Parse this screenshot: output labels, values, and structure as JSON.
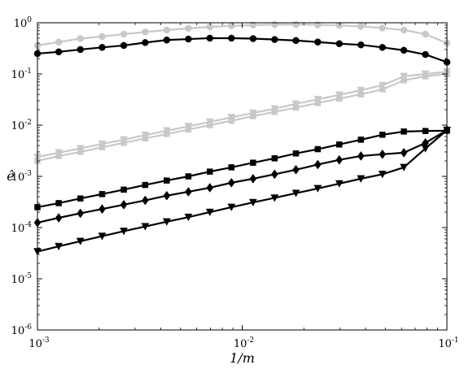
{
  "chart_data": {
    "type": "line",
    "title": "",
    "xlabel": "1/m",
    "ylabel": "ê",
    "xscale": "log",
    "yscale": "log",
    "xlim": [
      0.001,
      0.1
    ],
    "ylim": [
      1e-06,
      1
    ],
    "grid": false,
    "legend": "none",
    "x_ticks": [
      {
        "value": 0.001,
        "base": "10",
        "exp": "-3"
      },
      {
        "value": 0.01,
        "base": "10",
        "exp": "-2"
      },
      {
        "value": 0.1,
        "base": "10",
        "exp": "-1"
      }
    ],
    "y_ticks": [
      {
        "value": 1e-06,
        "base": "10",
        "exp": "-6"
      },
      {
        "value": 1e-05,
        "base": "10",
        "exp": "-5"
      },
      {
        "value": 0.0001,
        "base": "10",
        "exp": "-4"
      },
      {
        "value": 0.001,
        "base": "10",
        "exp": "-3"
      },
      {
        "value": 0.01,
        "base": "10",
        "exp": "-2"
      },
      {
        "value": 0.1,
        "base": "10",
        "exp": "-1"
      },
      {
        "value": 1,
        "base": "10",
        "exp": "0"
      }
    ],
    "series": [
      {
        "color": "#c8c8c8",
        "marker": "circle",
        "x": [
          0.001,
          0.00127,
          0.00162,
          0.00207,
          0.00264,
          0.00336,
          0.00428,
          0.00546,
          0.00695,
          0.00886,
          0.0113,
          0.0144,
          0.0183,
          0.0234,
          0.0298,
          0.038,
          0.0484,
          0.0616,
          0.0785,
          0.1
        ],
        "y": [
          0.36,
          0.42,
          0.49,
          0.54,
          0.6,
          0.66,
          0.72,
          0.78,
          0.83,
          0.87,
          0.9,
          0.92,
          0.92,
          0.91,
          0.89,
          0.85,
          0.79,
          0.72,
          0.6,
          0.4
        ]
      },
      {
        "color": "#000000",
        "marker": "circle",
        "x": [
          0.001,
          0.00127,
          0.00162,
          0.00207,
          0.00264,
          0.00336,
          0.00428,
          0.00546,
          0.00695,
          0.00886,
          0.0113,
          0.0144,
          0.0183,
          0.0234,
          0.0298,
          0.038,
          0.0484,
          0.0616,
          0.0785,
          0.1
        ],
        "y": [
          0.25,
          0.27,
          0.3,
          0.33,
          0.36,
          0.41,
          0.46,
          0.48,
          0.5,
          0.5,
          0.49,
          0.47,
          0.45,
          0.42,
          0.39,
          0.37,
          0.33,
          0.29,
          0.24,
          0.17
        ]
      },
      {
        "color": "#c8c8c8",
        "marker": "triangle-down",
        "x": [
          0.001,
          0.00127,
          0.00162,
          0.00207,
          0.00264,
          0.00336,
          0.00428,
          0.00546,
          0.00695,
          0.00886,
          0.0113,
          0.0144,
          0.0183,
          0.0234,
          0.0298,
          0.038,
          0.0484,
          0.0616,
          0.0785,
          0.1
        ],
        "y": [
          0.0024,
          0.0029,
          0.0035,
          0.0043,
          0.0052,
          0.0064,
          0.0078,
          0.0095,
          0.0116,
          0.0142,
          0.0173,
          0.021,
          0.026,
          0.032,
          0.039,
          0.048,
          0.06,
          0.09,
          0.1,
          0.11
        ]
      },
      {
        "color": "#c8c8c8",
        "marker": "square",
        "x": [
          0.001,
          0.00127,
          0.00162,
          0.00207,
          0.00264,
          0.00336,
          0.00428,
          0.00546,
          0.00695,
          0.00886,
          0.0113,
          0.0144,
          0.0183,
          0.0234,
          0.0298,
          0.038,
          0.0484,
          0.0616,
          0.0785,
          0.1
        ],
        "y": [
          0.002,
          0.0025,
          0.003,
          0.0037,
          0.0045,
          0.0055,
          0.0067,
          0.0082,
          0.01,
          0.0122,
          0.015,
          0.0182,
          0.022,
          0.027,
          0.033,
          0.04,
          0.05,
          0.075,
          0.09,
          0.1
        ]
      },
      {
        "color": "#000000",
        "marker": "square",
        "x": [
          0.001,
          0.00127,
          0.00162,
          0.00207,
          0.00264,
          0.00336,
          0.00428,
          0.00546,
          0.00695,
          0.00886,
          0.0113,
          0.0144,
          0.0183,
          0.0234,
          0.0298,
          0.038,
          0.0484,
          0.0616,
          0.0785,
          0.1
        ],
        "y": [
          0.00025,
          0.0003,
          0.00037,
          0.00045,
          0.00055,
          0.00068,
          0.00083,
          0.001,
          0.00124,
          0.0015,
          0.00185,
          0.00225,
          0.0028,
          0.0034,
          0.0042,
          0.0052,
          0.0065,
          0.0075,
          0.0077,
          0.0078
        ]
      },
      {
        "color": "#000000",
        "marker": "diamond",
        "x": [
          0.001,
          0.00127,
          0.00162,
          0.00207,
          0.00264,
          0.00336,
          0.00428,
          0.00546,
          0.00695,
          0.00886,
          0.0113,
          0.0144,
          0.0183,
          0.0234,
          0.0298,
          0.038,
          0.0484,
          0.0616,
          0.0785,
          0.1
        ],
        "y": [
          0.000125,
          0.000155,
          0.00019,
          0.00023,
          0.00028,
          0.00034,
          0.00042,
          0.0005,
          0.0006,
          0.00075,
          0.0009,
          0.0011,
          0.00135,
          0.0017,
          0.0021,
          0.0025,
          0.0027,
          0.0029,
          0.0045,
          0.008
        ]
      },
      {
        "color": "#000000",
        "marker": "triangle-down",
        "x": [
          0.001,
          0.00127,
          0.00162,
          0.00207,
          0.00264,
          0.00336,
          0.00428,
          0.00546,
          0.00695,
          0.00886,
          0.0113,
          0.0144,
          0.0183,
          0.0234,
          0.0298,
          0.038,
          0.0484,
          0.0616,
          0.0785,
          0.1
        ],
        "y": [
          3.4e-05,
          4.3e-05,
          5.4e-05,
          6.8e-05,
          8.5e-05,
          0.000105,
          0.00013,
          0.00016,
          0.0002,
          0.00025,
          0.00031,
          0.00038,
          0.00047,
          0.00058,
          0.00072,
          0.0009,
          0.0011,
          0.0015,
          0.0035,
          0.008
        ]
      }
    ]
  }
}
